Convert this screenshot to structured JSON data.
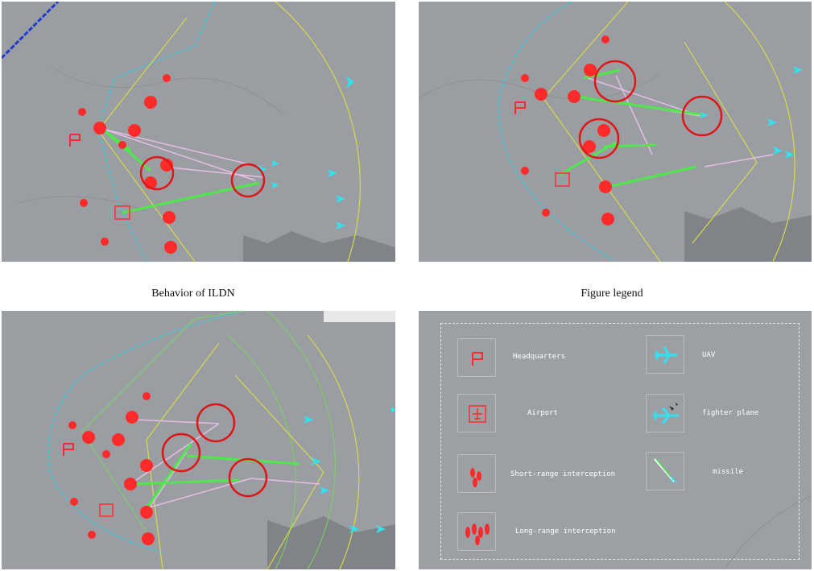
{
  "captions": {
    "top_left": "",
    "top_right": "",
    "left": "Behavior of ILDN",
    "right": "Figure legend"
  },
  "legend": {
    "items": [
      {
        "label": "Headquarters",
        "icon": "headquarters-flag-icon"
      },
      {
        "label": "Airport",
        "icon": "airport-icon"
      },
      {
        "label": "Short-range interception",
        "icon": "short-range-interception-icon"
      },
      {
        "label": "Long-range interception",
        "icon": "long-range-interception-icon"
      },
      {
        "label": "UAV",
        "icon": "uav-icon"
      },
      {
        "label": "fighter plane",
        "icon": "fighter-plane-icon"
      },
      {
        "label": "missile",
        "icon": "missile-icon"
      }
    ]
  },
  "colors": {
    "map_background": "#9a9ea3",
    "defense_unit": "#ff2a2a",
    "aircraft": "#33e0ee",
    "radar_range": "#d8d84a",
    "boundary": "#38c9d8",
    "highlight_circle": "#e01515",
    "track_green": "#4ee84a",
    "track_pink": "#e6bde6"
  }
}
